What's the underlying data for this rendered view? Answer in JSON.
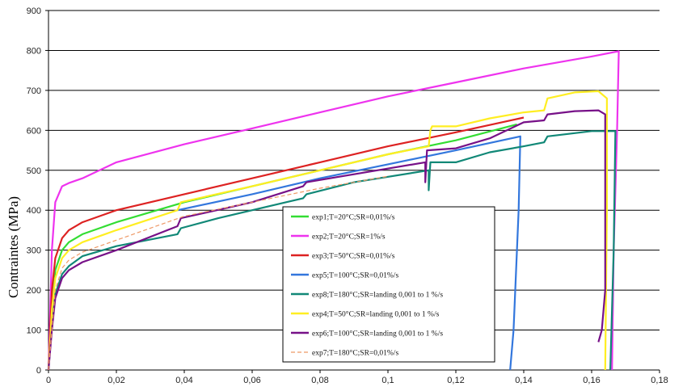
{
  "chart_data": {
    "type": "line",
    "title": "",
    "xlabel": "",
    "ylabel": "Contraintes  (MPa)",
    "xlim": [
      0,
      0.18
    ],
    "ylim": [
      0,
      900
    ],
    "grid": "horizontal",
    "legend_position": "lower-center",
    "x_ticks": [
      "0",
      "0,02",
      "0,04",
      "0,06",
      "0,08",
      "0,1",
      "0,12",
      "0,14",
      "0,16",
      "0,18"
    ],
    "y_ticks": [
      "0",
      "100",
      "200",
      "300",
      "400",
      "500",
      "600",
      "700",
      "800",
      "900"
    ],
    "series": [
      {
        "name": "exp1;T=20°C;SR=0,01%/s",
        "color": "#33dd33",
        "points": [
          [
            0,
            0
          ],
          [
            0.001,
            150
          ],
          [
            0.002,
            250
          ],
          [
            0.004,
            300
          ],
          [
            0.006,
            320
          ],
          [
            0.01,
            340
          ],
          [
            0.02,
            370
          ],
          [
            0.04,
            420
          ],
          [
            0.06,
            460
          ],
          [
            0.08,
            500
          ],
          [
            0.1,
            540
          ],
          [
            0.12,
            575
          ],
          [
            0.138,
            615
          ]
        ]
      },
      {
        "name": "exp2;T=20°C;SR=1%/s",
        "color": "#ee33ee",
        "points": [
          [
            0,
            0
          ],
          [
            0.001,
            300
          ],
          [
            0.002,
            420
          ],
          [
            0.004,
            460
          ],
          [
            0.006,
            468
          ],
          [
            0.01,
            480
          ],
          [
            0.02,
            520
          ],
          [
            0.04,
            565
          ],
          [
            0.06,
            605
          ],
          [
            0.08,
            645
          ],
          [
            0.1,
            685
          ],
          [
            0.12,
            720
          ],
          [
            0.14,
            755
          ],
          [
            0.16,
            785
          ],
          [
            0.168,
            798
          ],
          [
            0.1675,
            600
          ],
          [
            0.1665,
            300
          ],
          [
            0.166,
            0
          ]
        ]
      },
      {
        "name": "exp3;T=50°C;SR=0,01%/s",
        "color": "#dd2222",
        "points": [
          [
            0,
            0
          ],
          [
            0.001,
            200
          ],
          [
            0.002,
            280
          ],
          [
            0.004,
            330
          ],
          [
            0.006,
            350
          ],
          [
            0.01,
            370
          ],
          [
            0.02,
            400
          ],
          [
            0.04,
            440
          ],
          [
            0.06,
            480
          ],
          [
            0.08,
            520
          ],
          [
            0.1,
            560
          ],
          [
            0.12,
            595
          ],
          [
            0.14,
            632
          ]
        ]
      },
      {
        "name": "exp5;T=100°C;SR=0,01%/s",
        "color": "#3377dd",
        "points": [
          [
            0.038,
            400
          ],
          [
            0.06,
            440
          ],
          [
            0.08,
            480
          ],
          [
            0.1,
            515
          ],
          [
            0.12,
            550
          ],
          [
            0.139,
            585
          ],
          [
            0.1385,
            400
          ],
          [
            0.137,
            100
          ],
          [
            0.136,
            0
          ]
        ]
      },
      {
        "name": "exp8;T=180°C;SR=landing 0,001 to 1 %/s",
        "color": "#118877",
        "points": [
          [
            0,
            0
          ],
          [
            0.001,
            120
          ],
          [
            0.002,
            190
          ],
          [
            0.004,
            240
          ],
          [
            0.006,
            260
          ],
          [
            0.01,
            285
          ],
          [
            0.02,
            310
          ],
          [
            0.038,
            340
          ],
          [
            0.039,
            355
          ],
          [
            0.05,
            380
          ],
          [
            0.07,
            420
          ],
          [
            0.075,
            430
          ],
          [
            0.076,
            440
          ],
          [
            0.09,
            470
          ],
          [
            0.112,
            500
          ],
          [
            0.112,
            450
          ],
          [
            0.1125,
            520
          ],
          [
            0.12,
            520
          ],
          [
            0.13,
            545
          ],
          [
            0.14,
            560
          ],
          [
            0.146,
            570
          ],
          [
            0.147,
            585
          ],
          [
            0.16,
            598
          ],
          [
            0.167,
            598
          ],
          [
            0.1665,
            300
          ],
          [
            0.1655,
            0
          ]
        ]
      },
      {
        "name": "exp4;T=50°C;SR=landing 0,001 to 1 %/s",
        "color": "#ffee22",
        "points": [
          [
            0,
            0
          ],
          [
            0.001,
            150
          ],
          [
            0.002,
            230
          ],
          [
            0.004,
            280
          ],
          [
            0.006,
            300
          ],
          [
            0.01,
            320
          ],
          [
            0.02,
            350
          ],
          [
            0.038,
            400
          ],
          [
            0.039,
            420
          ],
          [
            0.06,
            460
          ],
          [
            0.08,
            500
          ],
          [
            0.1,
            540
          ],
          [
            0.112,
            560
          ],
          [
            0.1125,
            600
          ],
          [
            0.113,
            610
          ],
          [
            0.12,
            610
          ],
          [
            0.13,
            630
          ],
          [
            0.14,
            645
          ],
          [
            0.146,
            650
          ],
          [
            0.147,
            680
          ],
          [
            0.155,
            695
          ],
          [
            0.162,
            698
          ],
          [
            0.1645,
            680
          ],
          [
            0.1645,
            620
          ],
          [
            0.1645,
            400
          ],
          [
            0.164,
            0
          ]
        ]
      },
      {
        "name": "exp6;T=100°C;SR=landing 0,001 to 1 %/s",
        "color": "#771188",
        "points": [
          [
            0,
            0
          ],
          [
            0.001,
            100
          ],
          [
            0.002,
            180
          ],
          [
            0.004,
            230
          ],
          [
            0.006,
            250
          ],
          [
            0.01,
            270
          ],
          [
            0.02,
            300
          ],
          [
            0.038,
            360
          ],
          [
            0.039,
            380
          ],
          [
            0.06,
            420
          ],
          [
            0.075,
            460
          ],
          [
            0.076,
            470
          ],
          [
            0.09,
            490
          ],
          [
            0.111,
            520
          ],
          [
            0.111,
            470
          ],
          [
            0.1115,
            550
          ],
          [
            0.12,
            555
          ],
          [
            0.13,
            580
          ],
          [
            0.14,
            620
          ],
          [
            0.146,
            625
          ],
          [
            0.147,
            640
          ],
          [
            0.155,
            648
          ],
          [
            0.162,
            650
          ],
          [
            0.164,
            640
          ],
          [
            0.164,
            200
          ],
          [
            0.163,
            100
          ],
          [
            0.162,
            70
          ]
        ]
      },
      {
        "name": "exp7;T=180°C;SR=0,01%/s",
        "color": "#ee9966",
        "points": [
          [
            0,
            0
          ],
          [
            0.001,
            100
          ],
          [
            0.002,
            200
          ],
          [
            0.004,
            255
          ],
          [
            0.006,
            275
          ],
          [
            0.01,
            295
          ],
          [
            0.02,
            325
          ],
          [
            0.04,
            385
          ],
          [
            0.06,
            420
          ],
          [
            0.08,
            455
          ],
          [
            0.1,
            485
          ]
        ]
      }
    ]
  }
}
